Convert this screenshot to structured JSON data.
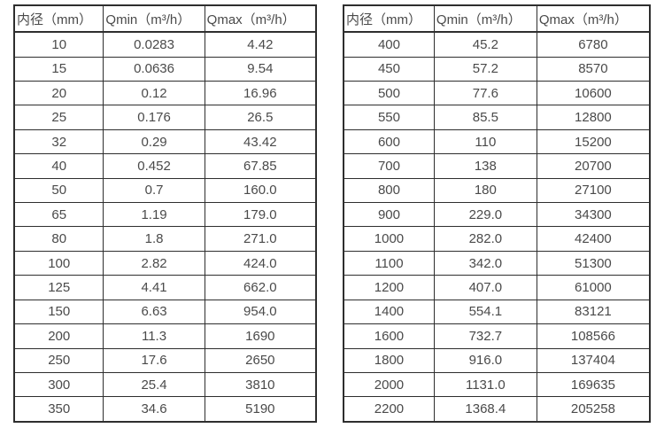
{
  "page": {
    "background_color": "#ffffff",
    "text_color": "#4a4a4a",
    "border_color": "#2e2e2e"
  },
  "tables": [
    {
      "name": "flow-table-small-diameters",
      "headers": [
        "内径（mm）",
        "Qmin（m³/h）",
        "Qmax（m³/h）"
      ],
      "rows": [
        [
          "10",
          "0.0283",
          "4.42"
        ],
        [
          "15",
          "0.0636",
          "9.54"
        ],
        [
          "20",
          "0.12",
          "16.96"
        ],
        [
          "25",
          "0.176",
          "26.5"
        ],
        [
          "32",
          "0.29",
          "43.42"
        ],
        [
          "40",
          "0.452",
          "67.85"
        ],
        [
          "50",
          "0.7",
          "160.0"
        ],
        [
          "65",
          "1.19",
          "179.0"
        ],
        [
          "80",
          "1.8",
          "271.0"
        ],
        [
          "100",
          "2.82",
          "424.0"
        ],
        [
          "125",
          "4.41",
          "662.0"
        ],
        [
          "150",
          "6.63",
          "954.0"
        ],
        [
          "200",
          "11.3",
          "1690"
        ],
        [
          "250",
          "17.6",
          "2650"
        ],
        [
          "300",
          "25.4",
          "3810"
        ],
        [
          "350",
          "34.6",
          "5190"
        ]
      ]
    },
    {
      "name": "flow-table-large-diameters",
      "headers": [
        "内径（mm）",
        "Qmin（m³/h）",
        "Qmax（m³/h）"
      ],
      "rows": [
        [
          "400",
          "45.2",
          "6780"
        ],
        [
          "450",
          "57.2",
          "8570"
        ],
        [
          "500",
          "77.6",
          "10600"
        ],
        [
          "550",
          "85.5",
          "12800"
        ],
        [
          "600",
          "110",
          "15200"
        ],
        [
          "700",
          "138",
          "20700"
        ],
        [
          "800",
          "180",
          "27100"
        ],
        [
          "900",
          "229.0",
          "34300"
        ],
        [
          "1000",
          "282.0",
          "42400"
        ],
        [
          "1100",
          "342.0",
          "51300"
        ],
        [
          "1200",
          "407.0",
          "61000"
        ],
        [
          "1400",
          "554.1",
          "83121"
        ],
        [
          "1600",
          "732.7",
          "108566"
        ],
        [
          "1800",
          "916.0",
          "137404"
        ],
        [
          "2000",
          "1131.0",
          "169635"
        ],
        [
          "2200",
          "1368.4",
          "205258"
        ]
      ]
    }
  ]
}
